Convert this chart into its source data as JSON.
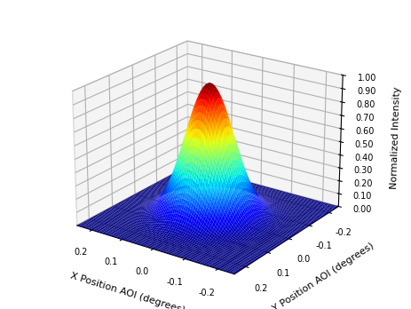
{
  "x_range": [
    -0.25,
    0.25
  ],
  "y_range": [
    -0.25,
    0.25
  ],
  "sigma": 0.065,
  "n_points": 80,
  "colormap": "jet",
  "xlabel": "X Position AOI (degrees)",
  "ylabel": "Y Position AOI (degrees)",
  "zlabel": "Normalized Intensity",
  "x_ticks": [
    0.2,
    0.1,
    0.0,
    -0.1,
    -0.2
  ],
  "y_ticks": [
    -0.2,
    -0.1,
    0.0,
    0.1,
    0.2
  ],
  "z_ticks": [
    0.0,
    0.1,
    0.2,
    0.3,
    0.4,
    0.5,
    0.6,
    0.7,
    0.8,
    0.9,
    1.0
  ],
  "elev": 22,
  "azim": -55,
  "figsize": [
    4.63,
    3.48
  ],
  "dpi": 100,
  "pane_color": "#ebebeb",
  "pane_edge_color": "#bbbbbb",
  "grid_color": "#cccccc",
  "tick_fontsize": 7,
  "label_fontsize": 8
}
